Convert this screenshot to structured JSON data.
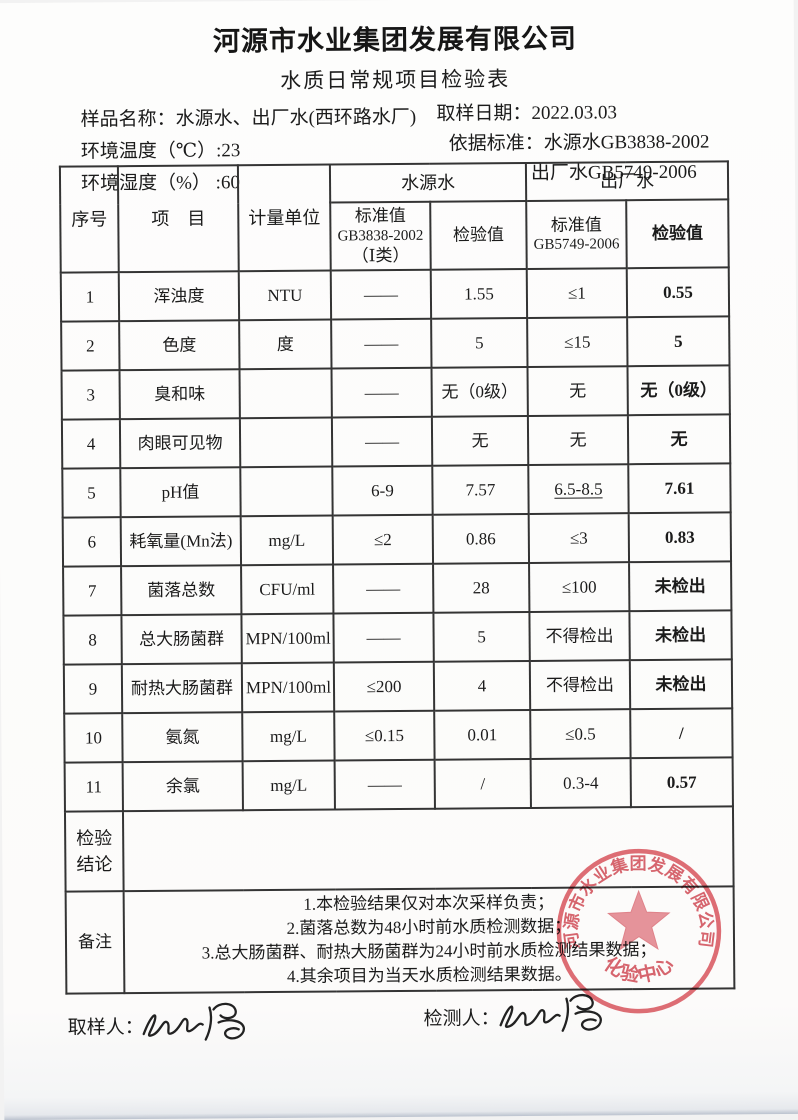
{
  "header": {
    "company": "河源市水业集团发展有限公司",
    "doc_title": "水质日常规项目检验表"
  },
  "info": {
    "sample_name": "样品名称：水源水、出厂水(西环路水厂)",
    "sampling_date": "取样日期：2022.03.03",
    "env_temperature": "环境温度（℃）:23",
    "basis_standard": "依据标准：水源水GB3838-2002",
    "env_humidity": "环境湿度（%） :60",
    "factory_standard": "出厂水GB5749-2006"
  },
  "table": {
    "headers": {
      "no": "序号",
      "item": "项　目",
      "unit": "计量单位",
      "source_group": "水源水",
      "factory_group": "出厂水",
      "source_standard_l1": "标准值",
      "source_standard_l2": "GB3838-2002",
      "source_standard_l3": "（Ⅰ类）",
      "source_value": "检验值",
      "factory_standard_l1": "标准值",
      "factory_standard_l2": "GB5749-2006",
      "factory_value": "检验值"
    },
    "rows": [
      {
        "no": "1",
        "item": "浑浊度",
        "unit": "NTU",
        "src_std": "——",
        "src_val": "1.55",
        "fac_std": "≤1",
        "fac_val": "0.55"
      },
      {
        "no": "2",
        "item": "色度",
        "unit": "度",
        "src_std": "——",
        "src_val": "5",
        "fac_std": "≤15",
        "fac_val": "5"
      },
      {
        "no": "3",
        "item": "臭和味",
        "unit": "",
        "src_std": "——",
        "src_val": "无（0级）",
        "fac_std": "无",
        "fac_val": "无（0级）"
      },
      {
        "no": "4",
        "item": "肉眼可见物",
        "unit": "",
        "src_std": "——",
        "src_val": "无",
        "fac_std": "无",
        "fac_val": "无"
      },
      {
        "no": "5",
        "item": "pH值",
        "unit": "",
        "src_std": "6-9",
        "src_val": "7.57",
        "fac_std": "6.5-8.5",
        "fac_val": "7.61",
        "fac_std_underline": true
      },
      {
        "no": "6",
        "item": "耗氧量(Mn法)",
        "unit": "mg/L",
        "src_std": "≤2",
        "src_val": "0.86",
        "fac_std": "≤3",
        "fac_val": "0.83"
      },
      {
        "no": "7",
        "item": "菌落总数",
        "unit": "CFU/ml",
        "src_std": "——",
        "src_val": "28",
        "fac_std": "≤100",
        "fac_val": "未检出"
      },
      {
        "no": "8",
        "item": "总大肠菌群",
        "unit": "MPN/100ml",
        "src_std": "——",
        "src_val": "5",
        "fac_std": "不得检出",
        "fac_val": "未检出"
      },
      {
        "no": "9",
        "item": "耐热大肠菌群",
        "unit": "MPN/100ml",
        "src_std": "≤200",
        "src_val": "4",
        "fac_std": "不得检出",
        "fac_val": "未检出"
      },
      {
        "no": "10",
        "item": "氨氮",
        "unit": "mg/L",
        "src_std": "≤0.15",
        "src_val": "0.01",
        "fac_std": "≤0.5",
        "fac_val": "/"
      },
      {
        "no": "11",
        "item": "余氯",
        "unit": "mg/L",
        "src_std": "——",
        "src_val": "/",
        "fac_std": "0.3-4",
        "fac_val": "0.57"
      }
    ]
  },
  "conclusion": {
    "label_l1": "检验",
    "label_l2": "结论",
    "content": ""
  },
  "remarks": {
    "label": "备注",
    "lines": [
      "1.本检验结果仅对本次采样负责；",
      "2.菌落总数为48小时前水质检测数据；",
      "3.总大肠菌群、耐热大肠菌群为24小时前水质检测结果数据；",
      "4.其余项目为当天水质检测结果数据。"
    ]
  },
  "signatures": {
    "sampler_label": "取样人：",
    "tester_label": "检测人："
  },
  "stamp": {
    "company": "河源市水业集团发展有限公司",
    "department": "化验中心",
    "color": "#d9565e"
  }
}
